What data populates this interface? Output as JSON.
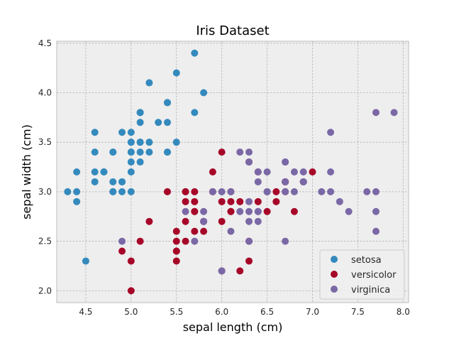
{
  "chart_data": {
    "type": "scatter",
    "title": "Iris Dataset",
    "xlabel": "sepal length (cm)",
    "ylabel": "sepal width (cm)",
    "xlim": [
      4.18,
      8.06
    ],
    "ylim": [
      1.88,
      4.52
    ],
    "xticks": [
      "4.5",
      "5.0",
      "5.5",
      "6.0",
      "6.5",
      "7.0",
      "7.5",
      "8.0"
    ],
    "yticks": [
      "2.0",
      "2.5",
      "3.0",
      "3.5",
      "4.0",
      "4.5"
    ],
    "grid": true,
    "legend_position": "lower-right",
    "background": "#eeeeee",
    "series": [
      {
        "name": "setosa",
        "color": "#348abd",
        "points": [
          [
            5.1,
            3.5
          ],
          [
            4.9,
            3.0
          ],
          [
            4.7,
            3.2
          ],
          [
            4.6,
            3.1
          ],
          [
            5.0,
            3.6
          ],
          [
            5.4,
            3.9
          ],
          [
            4.6,
            3.4
          ],
          [
            5.0,
            3.4
          ],
          [
            4.4,
            2.9
          ],
          [
            4.9,
            3.1
          ],
          [
            5.4,
            3.7
          ],
          [
            4.8,
            3.4
          ],
          [
            4.8,
            3.0
          ],
          [
            4.3,
            3.0
          ],
          [
            5.8,
            4.0
          ],
          [
            5.7,
            4.4
          ],
          [
            5.4,
            3.9
          ],
          [
            5.1,
            3.5
          ],
          [
            5.7,
            3.8
          ],
          [
            5.1,
            3.8
          ],
          [
            5.4,
            3.4
          ],
          [
            5.1,
            3.7
          ],
          [
            4.6,
            3.6
          ],
          [
            5.1,
            3.3
          ],
          [
            4.8,
            3.4
          ],
          [
            5.0,
            3.0
          ],
          [
            5.0,
            3.4
          ],
          [
            5.2,
            3.5
          ],
          [
            5.2,
            3.4
          ],
          [
            4.7,
            3.2
          ],
          [
            4.8,
            3.1
          ],
          [
            5.4,
            3.4
          ],
          [
            5.2,
            4.1
          ],
          [
            5.5,
            4.2
          ],
          [
            4.9,
            3.1
          ],
          [
            5.0,
            3.2
          ],
          [
            5.5,
            3.5
          ],
          [
            4.9,
            3.6
          ],
          [
            4.4,
            3.0
          ],
          [
            5.1,
            3.4
          ],
          [
            5.0,
            3.5
          ],
          [
            4.5,
            2.3
          ],
          [
            4.4,
            3.2
          ],
          [
            5.0,
            3.5
          ],
          [
            5.1,
            3.8
          ],
          [
            4.8,
            3.0
          ],
          [
            5.1,
            3.8
          ],
          [
            4.6,
            3.2
          ],
          [
            5.3,
            3.7
          ],
          [
            5.0,
            3.3
          ]
        ]
      },
      {
        "name": "versicolor",
        "color": "#a60628",
        "points": [
          [
            7.0,
            3.2
          ],
          [
            6.4,
            3.2
          ],
          [
            6.9,
            3.1
          ],
          [
            5.5,
            2.3
          ],
          [
            6.5,
            2.8
          ],
          [
            5.7,
            2.8
          ],
          [
            6.3,
            3.3
          ],
          [
            4.9,
            2.4
          ],
          [
            6.6,
            2.9
          ],
          [
            5.2,
            2.7
          ],
          [
            5.0,
            2.0
          ],
          [
            5.9,
            3.0
          ],
          [
            6.0,
            2.2
          ],
          [
            6.1,
            2.9
          ],
          [
            5.6,
            2.9
          ],
          [
            6.7,
            3.1
          ],
          [
            5.6,
            3.0
          ],
          [
            5.8,
            2.7
          ],
          [
            6.2,
            2.2
          ],
          [
            5.6,
            2.5
          ],
          [
            5.9,
            3.2
          ],
          [
            6.1,
            2.8
          ],
          [
            6.3,
            2.5
          ],
          [
            6.1,
            2.8
          ],
          [
            6.4,
            2.9
          ],
          [
            6.6,
            3.0
          ],
          [
            6.8,
            2.8
          ],
          [
            6.7,
            3.0
          ],
          [
            6.0,
            2.9
          ],
          [
            5.7,
            2.6
          ],
          [
            5.5,
            2.4
          ],
          [
            5.5,
            2.4
          ],
          [
            5.8,
            2.7
          ],
          [
            6.0,
            2.7
          ],
          [
            5.4,
            3.0
          ],
          [
            6.0,
            3.4
          ],
          [
            6.7,
            3.1
          ],
          [
            6.3,
            2.3
          ],
          [
            5.6,
            3.0
          ],
          [
            5.5,
            2.5
          ],
          [
            5.5,
            2.6
          ],
          [
            6.1,
            3.0
          ],
          [
            5.8,
            2.6
          ],
          [
            5.0,
            2.3
          ],
          [
            5.6,
            2.7
          ],
          [
            5.7,
            3.0
          ],
          [
            5.7,
            2.9
          ],
          [
            6.2,
            2.9
          ],
          [
            5.1,
            2.5
          ],
          [
            5.7,
            2.8
          ]
        ]
      },
      {
        "name": "virginica",
        "color": "#7a68a6",
        "points": [
          [
            6.3,
            3.3
          ],
          [
            5.8,
            2.7
          ],
          [
            7.1,
            3.0
          ],
          [
            6.3,
            2.9
          ],
          [
            6.5,
            3.0
          ],
          [
            7.6,
            3.0
          ],
          [
            4.9,
            2.5
          ],
          [
            7.3,
            2.9
          ],
          [
            6.7,
            2.5
          ],
          [
            7.2,
            3.6
          ],
          [
            6.5,
            3.2
          ],
          [
            6.4,
            2.7
          ],
          [
            6.8,
            3.0
          ],
          [
            5.7,
            2.5
          ],
          [
            5.8,
            2.8
          ],
          [
            6.4,
            3.2
          ],
          [
            6.5,
            3.0
          ],
          [
            7.7,
            3.8
          ],
          [
            7.7,
            2.6
          ],
          [
            6.0,
            2.2
          ],
          [
            6.9,
            3.2
          ],
          [
            5.6,
            2.8
          ],
          [
            7.7,
            2.8
          ],
          [
            6.3,
            2.7
          ],
          [
            6.7,
            3.3
          ],
          [
            7.2,
            3.2
          ],
          [
            6.2,
            2.8
          ],
          [
            6.1,
            3.0
          ],
          [
            6.4,
            2.8
          ],
          [
            7.2,
            3.0
          ],
          [
            7.4,
            2.8
          ],
          [
            7.9,
            3.8
          ],
          [
            6.4,
            2.8
          ],
          [
            6.3,
            2.8
          ],
          [
            6.1,
            2.6
          ],
          [
            7.7,
            3.0
          ],
          [
            6.3,
            3.4
          ],
          [
            6.4,
            3.1
          ],
          [
            6.0,
            3.0
          ],
          [
            6.9,
            3.1
          ],
          [
            6.7,
            3.1
          ],
          [
            6.9,
            3.1
          ],
          [
            5.8,
            2.7
          ],
          [
            6.8,
            3.2
          ],
          [
            6.7,
            3.3
          ],
          [
            6.7,
            3.0
          ],
          [
            6.3,
            2.5
          ],
          [
            6.5,
            3.0
          ],
          [
            6.2,
            3.4
          ],
          [
            5.9,
            3.0
          ]
        ]
      }
    ]
  }
}
